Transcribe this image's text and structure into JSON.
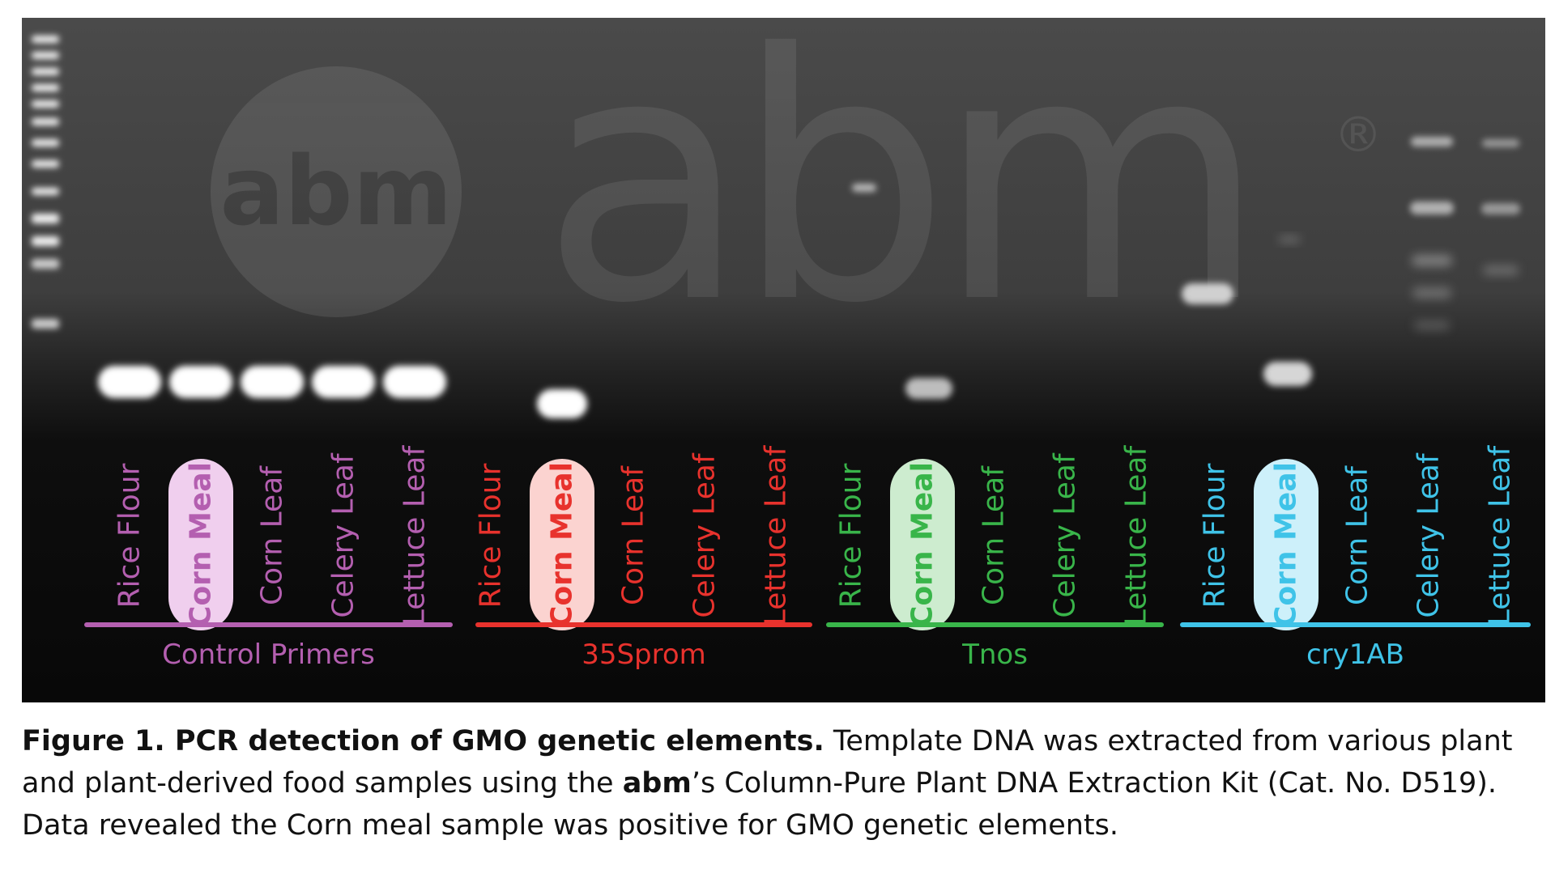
{
  "watermark": {
    "small": "abm",
    "large": "abm",
    "registered": "®"
  },
  "groups": [
    {
      "name": "Control Primers",
      "color": "#b45fb0",
      "pill_color": "#f0cfee",
      "lanes": [
        "Rice Flour",
        "Corn Meal",
        "Corn Leaf",
        "Celery Leaf",
        "Lettuce Leaf"
      ]
    },
    {
      "name": "35Sprom",
      "color": "#e8322d",
      "pill_color": "#fbd3d0",
      "lanes": [
        "Rice Flour",
        "Corn Meal",
        "Corn Leaf",
        "Celery Leaf",
        "Lettuce Leaf"
      ]
    },
    {
      "name": "Tnos",
      "color": "#39b54a",
      "pill_color": "#cdeccf",
      "lanes": [
        "Rice Flour",
        "Corn Meal",
        "Corn Leaf",
        "Celery Leaf",
        "Lettuce Leaf"
      ]
    },
    {
      "name": "cry1AB",
      "color": "#3fc3e8",
      "pill_color": "#cdf0fa",
      "lanes": [
        "Rice Flour",
        "Corn Meal",
        "Corn Leaf",
        "Celery Leaf",
        "Lettuce Leaf"
      ]
    }
  ],
  "highlighted_lane": "Corn Meal",
  "caption": {
    "title": "Figure 1. PCR detection of GMO genetic elements.",
    "text1": " Template DNA was extracted from various plant and plant-derived food samples using the ",
    "brand": "abm",
    "text2": "’s Column-Pure Plant DNA Extraction Kit (Cat. No. D519). Data revealed the Corn meal sample was positive for GMO genetic elements."
  }
}
